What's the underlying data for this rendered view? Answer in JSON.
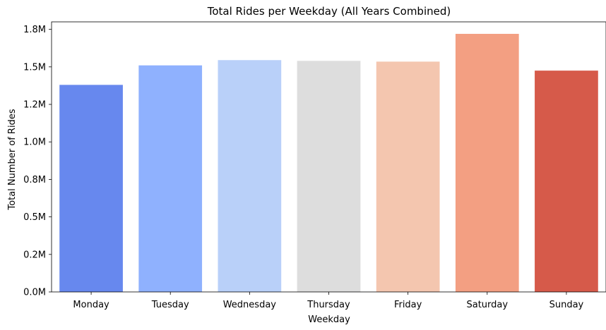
{
  "chart_data": {
    "type": "bar",
    "title": "Total Rides per Weekday (All Years Combined)",
    "xlabel": "Weekday",
    "ylabel": "Total Number of Rides",
    "categories": [
      "Monday",
      "Tuesday",
      "Wednesday",
      "Thursday",
      "Friday",
      "Saturday",
      "Sunday"
    ],
    "values": [
      1380000,
      1510000,
      1545000,
      1540000,
      1535000,
      1720000,
      1475000
    ],
    "colors": [
      "#6788ee",
      "#8fb1fe",
      "#b9d0f9",
      "#dddddd",
      "#f4c6af",
      "#f39f82",
      "#d65a4a"
    ],
    "ylim": [
      0,
      1800000
    ],
    "yticks": [
      0,
      250000,
      500000,
      750000,
      1000000,
      1250000,
      1500000,
      1750000
    ],
    "ytick_labels": [
      "0.0M",
      "0.2M",
      "0.5M",
      "0.8M",
      "1.0M",
      "1.2M",
      "1.5M",
      "1.8M"
    ],
    "grid": false,
    "legend": "none"
  }
}
